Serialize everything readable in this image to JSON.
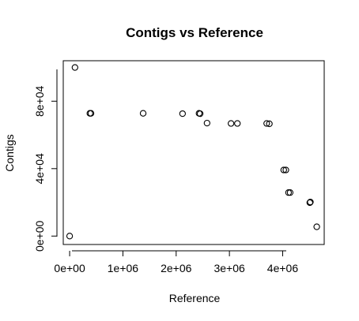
{
  "chart_data": {
    "type": "scatter",
    "title": "Contigs vs Reference",
    "xlabel": "Reference",
    "ylabel": "Contigs",
    "xlim": [
      -120000,
      4780000
    ],
    "ylim": [
      -5000,
      104000
    ],
    "xticks": [
      0,
      1000000,
      2000000,
      3000000,
      4000000
    ],
    "xtick_labels": [
      "0e+00",
      "1e+06",
      "2e+06",
      "3e+06",
      "4e+06"
    ],
    "yticks": [
      0,
      40000,
      80000
    ],
    "ytick_labels": [
      "0e+00",
      "4e+04",
      "8e+04"
    ],
    "grid": false,
    "legend": "none",
    "points": [
      {
        "x": 0,
        "y": 0
      },
      {
        "x": 100000,
        "y": 100000
      },
      {
        "x": 380000,
        "y": 72800
      },
      {
        "x": 400000,
        "y": 72800
      },
      {
        "x": 1380000,
        "y": 72800
      },
      {
        "x": 2120000,
        "y": 72600
      },
      {
        "x": 2430000,
        "y": 72800
      },
      {
        "x": 2450000,
        "y": 72600
      },
      {
        "x": 2580000,
        "y": 67000
      },
      {
        "x": 3030000,
        "y": 66800
      },
      {
        "x": 3150000,
        "y": 66800
      },
      {
        "x": 3700000,
        "y": 66800
      },
      {
        "x": 3750000,
        "y": 66600
      },
      {
        "x": 4020000,
        "y": 39200
      },
      {
        "x": 4060000,
        "y": 39200
      },
      {
        "x": 4110000,
        "y": 25800
      },
      {
        "x": 4140000,
        "y": 25800
      },
      {
        "x": 4510000,
        "y": 19800
      },
      {
        "x": 4520000,
        "y": 20200
      },
      {
        "x": 4640000,
        "y": 5500
      }
    ]
  }
}
